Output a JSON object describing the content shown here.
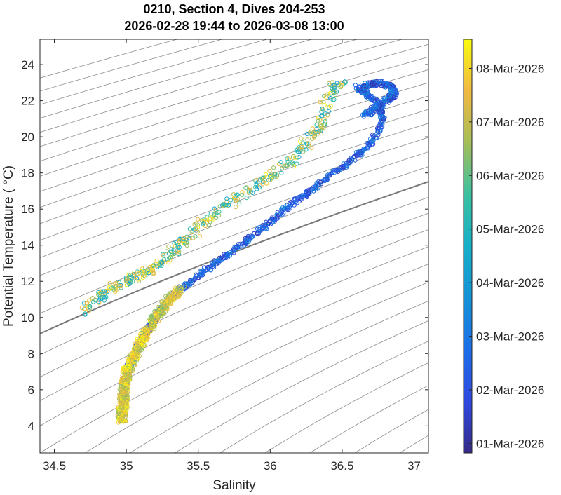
{
  "chart_data": {
    "type": "scatter",
    "title": "0210, Section 4, Dives 204-253",
    "subtitle": "2026-02-28 19:44 to 2026-03-08 13:00",
    "xlabel": "Salinity",
    "ylabel": "Potential Temperature ( °C)",
    "xlim": [
      34.4,
      37.1
    ],
    "ylim": [
      2.5,
      25.4
    ],
    "xticks": [
      "34.5",
      "35",
      "35.5",
      "36",
      "36.5",
      "37"
    ],
    "yticks": [
      "4",
      "6",
      "8",
      "10",
      "12",
      "14",
      "16",
      "18",
      "20",
      "22",
      "24"
    ],
    "grid": false,
    "marker": "open-circle",
    "colorbar": {
      "colormap": "parula",
      "range": [
        "2026-02-28 19:44",
        "2026-03-08 13:00"
      ],
      "ticks": [
        "01-Mar-2026",
        "02-Mar-2026",
        "03-Mar-2026",
        "04-Mar-2026",
        "05-Mar-2026",
        "06-Mar-2026",
        "07-Mar-2026",
        "08-Mar-2026"
      ]
    },
    "contours": {
      "type": "potential density isopycnals",
      "color": "#8c8c8c",
      "highlighted_color": "#7a7a7a"
    },
    "series": [
      {
        "segment": "main T-S curve",
        "points": [
          [
            34.97,
            4.3
          ],
          [
            34.97,
            4.8
          ],
          [
            34.98,
            5.3
          ],
          [
            34.98,
            5.8
          ],
          [
            34.99,
            6.3
          ],
          [
            35.0,
            6.9
          ],
          [
            35.03,
            7.5
          ],
          [
            35.06,
            8.0
          ],
          [
            35.1,
            8.6
          ],
          [
            35.14,
            9.2
          ],
          [
            35.19,
            9.8
          ],
          [
            35.24,
            10.4
          ],
          [
            35.3,
            11.0
          ],
          [
            35.38,
            11.6
          ],
          [
            35.47,
            12.1
          ],
          [
            35.55,
            12.6
          ],
          [
            35.65,
            13.2
          ],
          [
            35.74,
            13.7
          ],
          [
            35.83,
            14.2
          ],
          [
            35.92,
            14.8
          ],
          [
            36.01,
            15.3
          ],
          [
            36.09,
            15.9
          ],
          [
            36.17,
            16.4
          ],
          [
            36.26,
            16.9
          ],
          [
            36.34,
            17.4
          ],
          [
            36.43,
            17.9
          ],
          [
            36.52,
            18.4
          ],
          [
            36.61,
            19.0
          ],
          [
            36.69,
            19.6
          ],
          [
            36.75,
            20.3
          ],
          [
            36.78,
            21.0
          ],
          [
            36.77,
            21.6
          ],
          [
            36.73,
            22.0
          ],
          [
            36.66,
            22.4
          ],
          [
            36.6,
            22.8
          ]
        ]
      },
      {
        "segment": "upper fresh branch",
        "points": [
          [
            36.5,
            23.1
          ],
          [
            36.42,
            22.5
          ],
          [
            36.38,
            21.5
          ],
          [
            36.35,
            20.5
          ],
          [
            36.28,
            19.9
          ],
          [
            36.18,
            19.0
          ],
          [
            36.07,
            18.2
          ],
          [
            35.95,
            17.5
          ],
          [
            35.8,
            16.8
          ],
          [
            35.66,
            16.0
          ],
          [
            35.55,
            15.3
          ],
          [
            35.45,
            14.6
          ],
          [
            35.36,
            13.9
          ],
          [
            35.28,
            13.3
          ],
          [
            35.2,
            12.8
          ],
          [
            35.11,
            12.4
          ],
          [
            35.02,
            12.1
          ],
          [
            34.94,
            11.8
          ],
          [
            34.86,
            11.4
          ],
          [
            34.78,
            10.9
          ],
          [
            34.7,
            10.3
          ]
        ]
      },
      {
        "segment": "warm salty loop",
        "points": [
          [
            36.66,
            21.2
          ],
          [
            36.74,
            21.6
          ],
          [
            36.81,
            22.0
          ],
          [
            36.86,
            22.4
          ],
          [
            36.84,
            22.8
          ],
          [
            36.76,
            23.0
          ],
          [
            36.68,
            22.9
          ],
          [
            36.62,
            22.6
          ]
        ]
      }
    ]
  }
}
